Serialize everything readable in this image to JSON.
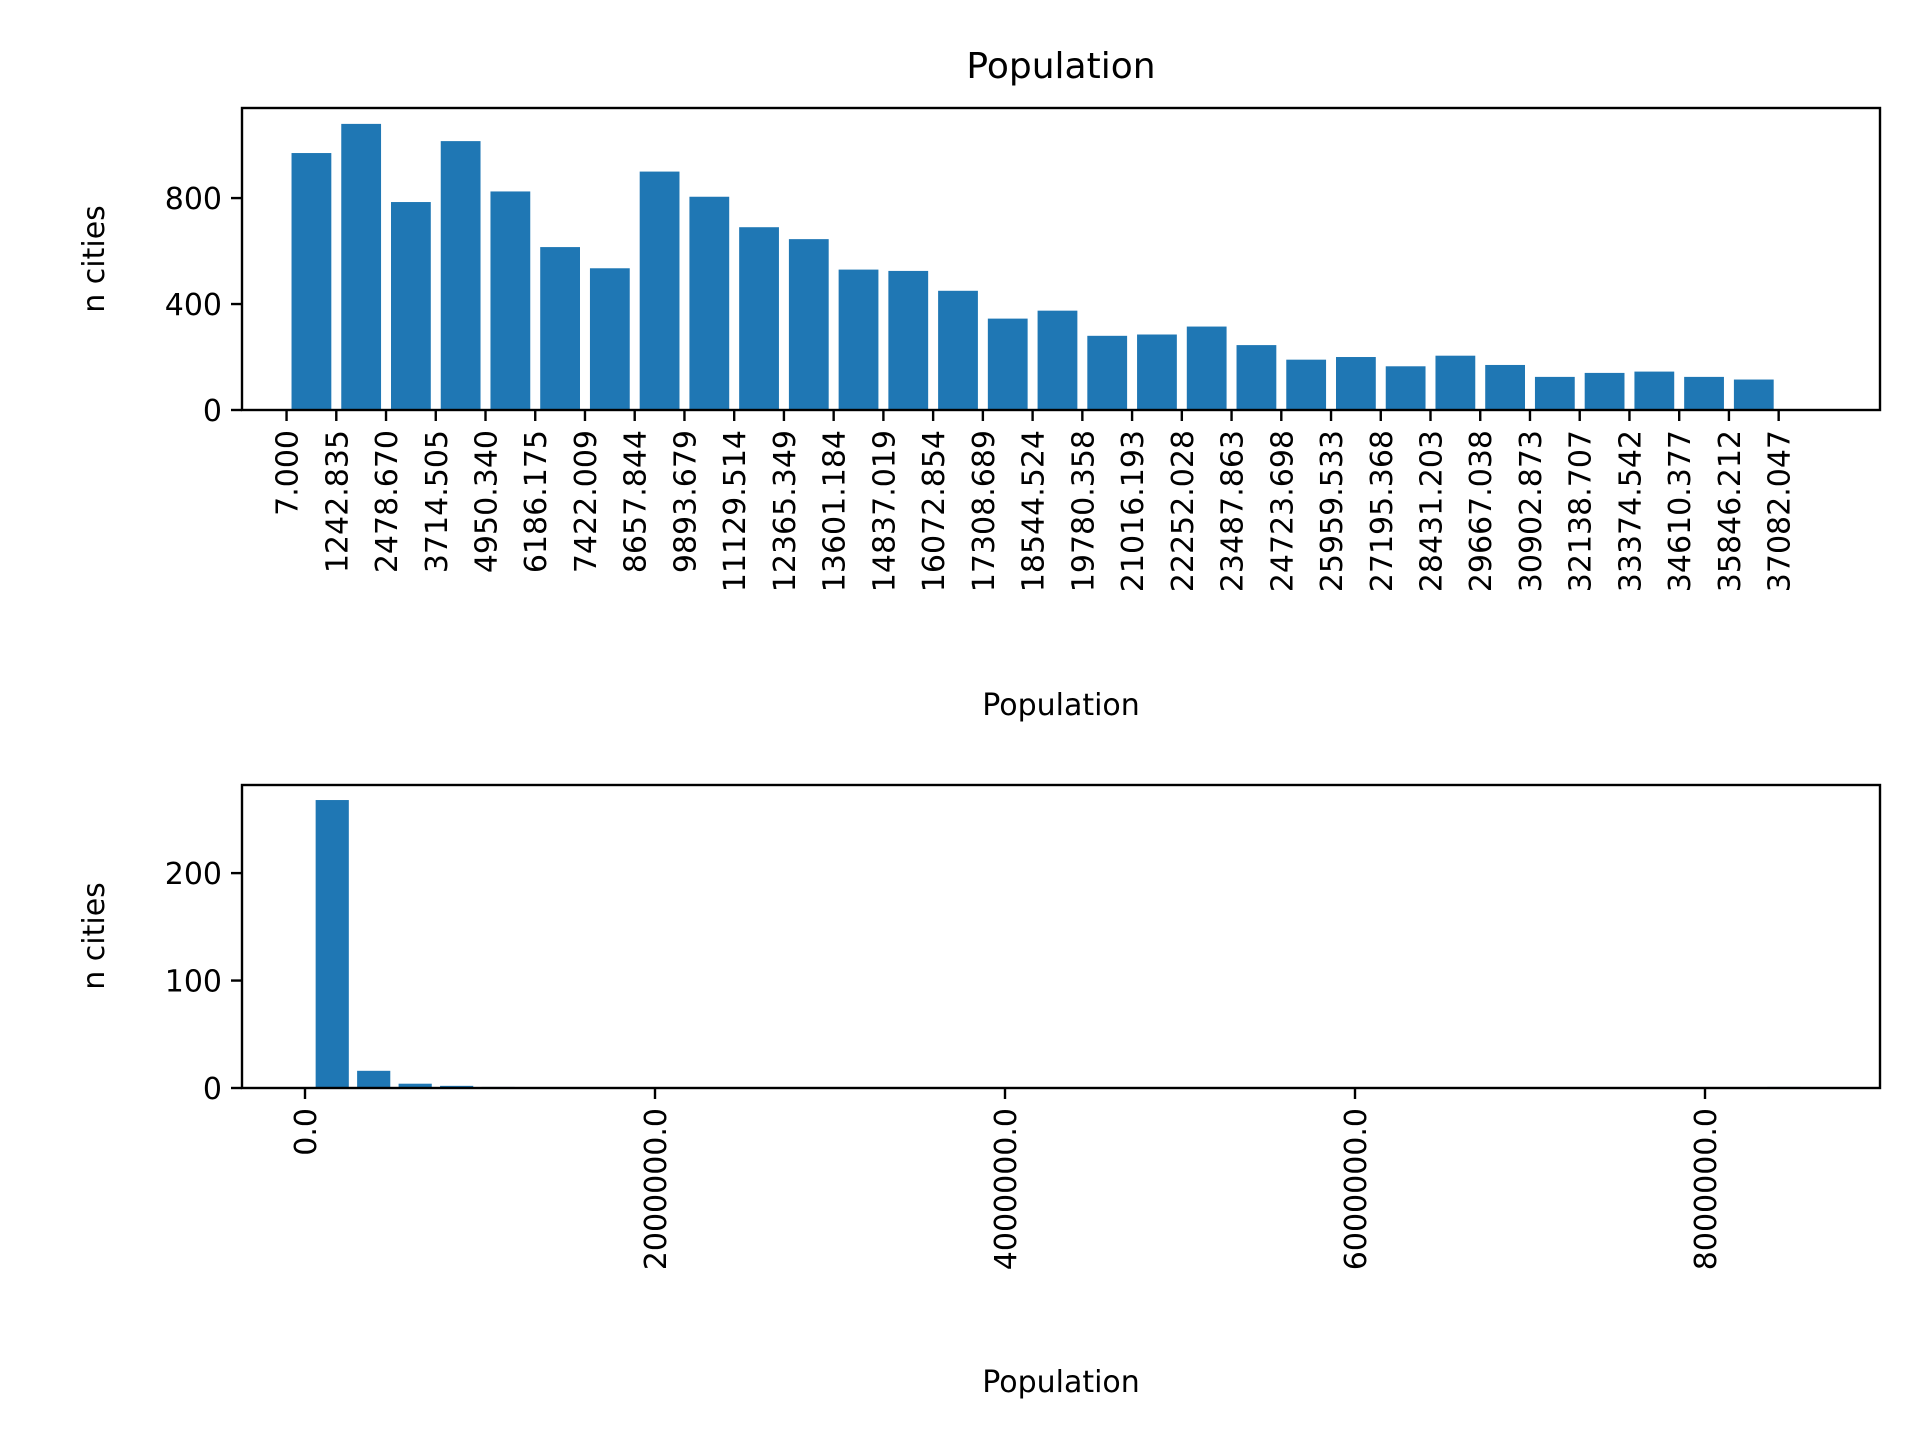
{
  "chart_data": [
    {
      "type": "bar",
      "title": "Population",
      "xlabel": "Population",
      "ylabel": "n cities",
      "x_tick_labels": [
        "7.000",
        "1242.835",
        "2478.670",
        "3714.505",
        "4950.340",
        "6186.175",
        "7422.009",
        "8657.844",
        "9893.679",
        "11129.514",
        "12365.349",
        "13601.184",
        "14837.019",
        "16072.854",
        "17308.689",
        "18544.524",
        "19780.358",
        "21016.193",
        "22252.028",
        "23487.863",
        "24723.698",
        "25959.533",
        "27195.368",
        "28431.203",
        "29667.038",
        "30902.873",
        "32138.707",
        "33374.542",
        "34610.377",
        "35846.212",
        "37082.047"
      ],
      "x_ticks": [
        7.0,
        1242.835,
        2478.67,
        3714.505,
        4950.34,
        6186.175,
        7422.009,
        8657.844,
        9893.679,
        11129.514,
        12365.349,
        13601.184,
        14837.019,
        16072.854,
        17308.689,
        18544.524,
        19780.358,
        21016.193,
        22252.028,
        23487.863,
        24723.698,
        25959.533,
        27195.368,
        28431.203,
        29667.038,
        30902.873,
        32138.707,
        33374.542,
        34610.377,
        35846.212,
        37082.047
      ],
      "bin_width": 1235.835,
      "values": [
        970,
        1080,
        785,
        1015,
        825,
        615,
        535,
        900,
        805,
        690,
        645,
        530,
        525,
        450,
        345,
        375,
        280,
        285,
        315,
        245,
        190,
        200,
        165,
        205,
        170,
        125,
        140,
        145,
        125,
        115
      ],
      "xlim": [
        -1100,
        39600
      ],
      "ylim": [
        0,
        1140
      ],
      "y_ticks": [
        0,
        400,
        800
      ],
      "y_tick_labels": [
        "0",
        "400",
        "800"
      ],
      "color": "#1f77b4"
    },
    {
      "type": "bar",
      "xlabel": "Population",
      "ylabel": "n cities",
      "x_tick_labels": [
        "0.0",
        "2000000.0",
        "4000000.0",
        "6000000.0",
        "8000000.0"
      ],
      "x_ticks": [
        0,
        2000000,
        4000000,
        6000000,
        8000000
      ],
      "bin_start": 37082.047,
      "bin_width": 237000,
      "values": [
        268,
        16,
        4,
        2,
        1,
        0.6,
        0.4,
        0.3,
        0.3,
        0.2,
        0.2,
        0.2,
        0,
        0,
        0,
        0,
        0,
        0,
        0,
        0,
        0,
        0,
        0,
        0,
        0,
        0,
        0,
        0,
        0,
        0,
        0,
        0,
        0,
        0,
        0,
        1
      ],
      "xlim": [
        -360000,
        9000000
      ],
      "ylim": [
        0,
        282
      ],
      "y_ticks": [
        0,
        100,
        200
      ],
      "y_tick_labels": [
        "0",
        "100",
        "200"
      ],
      "color": "#1f77b4"
    }
  ]
}
